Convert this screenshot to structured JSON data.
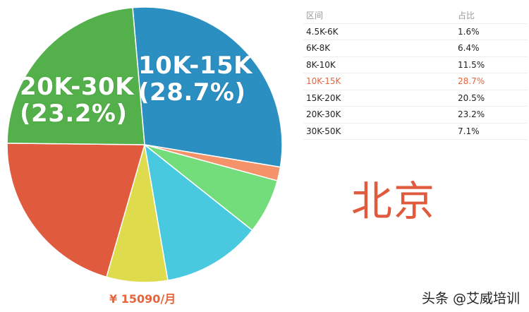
{
  "chart_data": {
    "type": "pie",
    "title": "",
    "slices": [
      {
        "label": "4.5K-6K",
        "value": 1.6,
        "display": "1.6%",
        "color": "#f4926a"
      },
      {
        "label": "6K-8K",
        "value": 6.4,
        "display": "6.4%",
        "color": "#72dd7a"
      },
      {
        "label": "8K-10K",
        "value": 11.5,
        "display": "11.5%",
        "color": "#48c9e0"
      },
      {
        "label": "10K-15K",
        "value": 28.7,
        "display": "28.7%",
        "color": "#2b8fc2"
      },
      {
        "label": "15K-20K",
        "value": 20.5,
        "display": "20.5%",
        "color": "#e05a3e"
      },
      {
        "label": "20K-30K",
        "value": 23.2,
        "display": "23.2%",
        "color": "#53b04a"
      },
      {
        "label": "30K-50K",
        "value": 7.1,
        "display": "7.1%",
        "color": "#dedb4d"
      }
    ],
    "labels_on_pie": [
      {
        "range": "10K-15K",
        "pct": "(28.7%)"
      },
      {
        "range": "20K-30K",
        "pct": "(23.2%)"
      }
    ],
    "legend": "none"
  },
  "table": {
    "headers": [
      "区间",
      "占比"
    ],
    "rows": [
      {
        "range": "4.5K-6K",
        "pct": "1.6%"
      },
      {
        "range": "6K-8K",
        "pct": "6.4%"
      },
      {
        "range": "8K-10K",
        "pct": "11.5%"
      },
      {
        "range": "10K-15K",
        "pct": "28.7%",
        "highlight": true
      },
      {
        "range": "15K-20K",
        "pct": "20.5%"
      },
      {
        "range": "20K-30K",
        "pct": "23.2%"
      },
      {
        "range": "30K-50K",
        "pct": "7.1%"
      }
    ],
    "highlight_color": "#e8643c"
  },
  "average_salary": "¥ 15090/月",
  "city": "北京",
  "watermark": "头条 @艾威培训"
}
